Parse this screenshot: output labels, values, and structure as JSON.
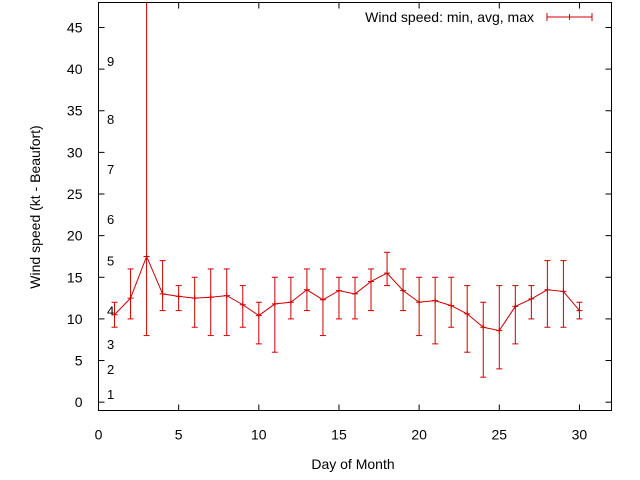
{
  "chart_data": {
    "type": "line",
    "title": "",
    "xlabel": "Day of Month",
    "ylabel": "Wind speed (kt - Beaufort)",
    "xlim": [
      0,
      32
    ],
    "ylim": [
      -1,
      48
    ],
    "x_ticks": [
      0,
      5,
      10,
      15,
      20,
      25,
      30
    ],
    "y_ticks": [
      0,
      5,
      10,
      15,
      20,
      25,
      30,
      35,
      40,
      45
    ],
    "grid": false,
    "legend_position": "top-right",
    "series": [
      {
        "name": "Wind speed: min, avg, max",
        "color": "#cc0000",
        "x": [
          1,
          2,
          3,
          4,
          5,
          6,
          7,
          8,
          9,
          10,
          11,
          12,
          13,
          14,
          15,
          16,
          17,
          18,
          19,
          20,
          21,
          22,
          23,
          24,
          25,
          26,
          27,
          28,
          29,
          30
        ],
        "avg": [
          10.5,
          12.5,
          17.5,
          13,
          12.7,
          12.5,
          12.6,
          12.8,
          11.7,
          10.4,
          11.8,
          12,
          13.5,
          12.3,
          13.4,
          13,
          14.5,
          15.5,
          13.4,
          12,
          12.2,
          11.6,
          10.6,
          9,
          8.6,
          11.5,
          12.4,
          13.5,
          13.3,
          11
        ],
        "min": [
          9,
          10,
          8,
          11,
          11,
          9,
          8,
          8,
          9,
          7,
          6,
          10,
          11,
          8,
          10,
          10,
          11,
          14,
          11,
          8,
          7,
          9,
          6,
          3,
          4,
          7,
          10,
          9,
          9,
          10
        ],
        "max": [
          12,
          16,
          48,
          17,
          14,
          15,
          16,
          16,
          14,
          12,
          15,
          15,
          16,
          16,
          15,
          15,
          16,
          18,
          16,
          15,
          15,
          15,
          14,
          12,
          14,
          14,
          14,
          17,
          17,
          12
        ]
      }
    ],
    "annotations": [
      {
        "text": "1",
        "y": 1
      },
      {
        "text": "2",
        "y": 4
      },
      {
        "text": "3",
        "y": 7
      },
      {
        "text": "4",
        "y": 11
      },
      {
        "text": "5",
        "y": 17
      },
      {
        "text": "6",
        "y": 22
      },
      {
        "text": "7",
        "y": 28
      },
      {
        "text": "8",
        "y": 34
      },
      {
        "text": "9",
        "y": 41
      }
    ]
  }
}
